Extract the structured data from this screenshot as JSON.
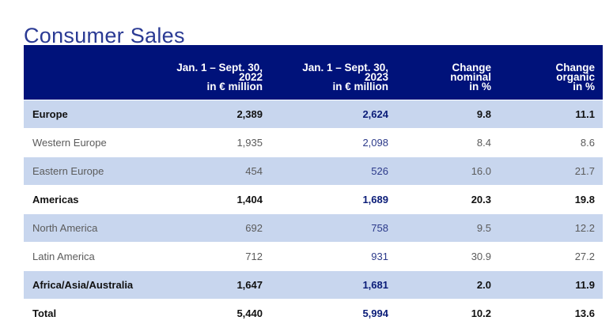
{
  "title": "Consumer Sales",
  "header": {
    "col0": "",
    "col1": [
      "Jan. 1 – Sept. 30,",
      "2022",
      "in € million"
    ],
    "col2": [
      "Jan. 1 – Sept. 30,",
      "2023",
      "in € million"
    ],
    "col3": [
      "Change",
      "nominal",
      "in %"
    ],
    "col4": [
      "Change",
      "organic",
      "in %"
    ]
  },
  "rows": [
    {
      "region": "Europe",
      "y2022": "2,389",
      "y2023": "2,624",
      "nominal": "9.8",
      "organic": "11.1"
    },
    {
      "region": "Western Europe",
      "y2022": "1,935",
      "y2023": "2,098",
      "nominal": "8.4",
      "organic": "8.6"
    },
    {
      "region": "Eastern Europe",
      "y2022": "454",
      "y2023": "526",
      "nominal": "16.0",
      "organic": "21.7"
    },
    {
      "region": "Americas",
      "y2022": "1,404",
      "y2023": "1,689",
      "nominal": "20.3",
      "organic": "19.8"
    },
    {
      "region": "North America",
      "y2022": "692",
      "y2023": "758",
      "nominal": "9.5",
      "organic": "12.2"
    },
    {
      "region": "Latin America",
      "y2022": "712",
      "y2023": "931",
      "nominal": "30.9",
      "organic": "27.2"
    },
    {
      "region": "Africa/Asia/Australia",
      "y2022": "1,647",
      "y2023": "1,681",
      "nominal": "2.0",
      "organic": "11.9"
    },
    {
      "region": "Total",
      "y2022": "5,440",
      "y2023": "5,994",
      "nominal": "10.2",
      "organic": "13.6"
    }
  ],
  "colors": {
    "header_bg": "#00127a",
    "title": "#2a3a94",
    "row_shade": "#c8d6ee"
  }
}
